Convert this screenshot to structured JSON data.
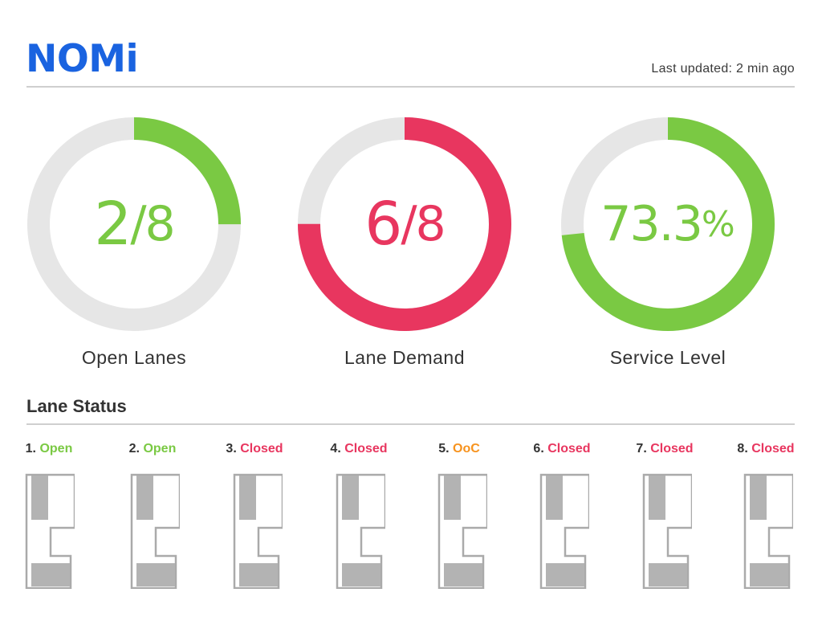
{
  "brand": {
    "name": "NOMi",
    "color": "#1a63e0"
  },
  "header": {
    "last_updated": "Last updated: 2 min ago"
  },
  "colors": {
    "green": "#7ac943",
    "red": "#e8365f",
    "orange": "#f7931e",
    "track": "#e6e6e6",
    "lane_outline": "#aaaaaa",
    "lane_fill": "#b3b3b3"
  },
  "gauges": [
    {
      "id": "open-lanes",
      "value_main": "2",
      "value_suffix": "/8",
      "label": "Open Lanes",
      "fraction": 0.25,
      "color": "#7ac943",
      "start": "top"
    },
    {
      "id": "lane-demand",
      "value_main": "6",
      "value_suffix": "/8",
      "label": "Lane Demand",
      "fraction": 0.75,
      "color": "#e8365f",
      "start": "top"
    },
    {
      "id": "service-level",
      "value_main": "73.3",
      "value_suffix": "%",
      "label": "Service Level",
      "fraction": 0.733,
      "color": "#7ac943",
      "start": "top"
    }
  ],
  "lane_status": {
    "title": "Lane Status",
    "lanes": [
      {
        "number": "1.",
        "status": "Open",
        "color": "#7ac943"
      },
      {
        "number": "2.",
        "status": "Open",
        "color": "#7ac943"
      },
      {
        "number": "3.",
        "status": "Closed",
        "color": "#e8365f"
      },
      {
        "number": "4.",
        "status": "Closed",
        "color": "#e8365f"
      },
      {
        "number": "5.",
        "status": "OoC",
        "color": "#f7931e"
      },
      {
        "number": "6.",
        "status": "Closed",
        "color": "#e8365f"
      },
      {
        "number": "7.",
        "status": "Closed",
        "color": "#e8365f"
      },
      {
        "number": "8.",
        "status": "Closed",
        "color": "#e8365f"
      }
    ]
  }
}
